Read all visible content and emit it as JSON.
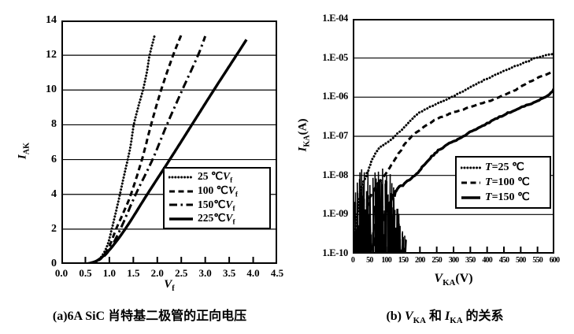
{
  "page": {
    "background": "#ffffff",
    "ink": "#000000"
  },
  "captions": {
    "a": "(a)6A SiC 肖特基二极管的正向电压",
    "b_parts": [
      {
        "t": "(b) "
      },
      {
        "sym": "V"
      },
      {
        "sub": "KA"
      },
      {
        "t": " 和 "
      },
      {
        "sym": "I"
      },
      {
        "sub": "KA"
      },
      {
        "t": " 的关系"
      }
    ]
  },
  "chart_data": [
    {
      "type": "line",
      "name": "forward-voltage",
      "title": "",
      "xlabel_parts": [
        {
          "sym": "V"
        },
        {
          "sub": "f"
        }
      ],
      "ylabel_parts": [
        {
          "sym": "I"
        },
        {
          "sub": "AK"
        }
      ],
      "xlim": [
        0,
        4.5
      ],
      "ylim": [
        0,
        14
      ],
      "xtick_values": [
        0,
        0.5,
        1.0,
        1.5,
        2.0,
        2.5,
        3.0,
        3.5,
        4.0,
        4.5
      ],
      "xtick_labels": [
        "0.0",
        "0.5",
        "1.0",
        "1.5",
        "2.0",
        "2.5",
        "3.0",
        "3.5",
        "4.0",
        "4.5"
      ],
      "ytick_values": [
        0,
        2,
        4,
        6,
        8,
        10,
        12,
        14
      ],
      "ytick_labels": [
        "0",
        "2",
        "4",
        "6",
        "8",
        "10",
        "12",
        "14"
      ],
      "grid": "horizontal",
      "legend_position": "inside-lower-right",
      "series": [
        {
          "name": "25C",
          "style": "dotted",
          "label_parts": [
            {
              "t": "25 ℃"
            },
            {
              "sym": "V"
            },
            {
              "sub": "f"
            }
          ],
          "points": [
            [
              0.62,
              0
            ],
            [
              0.8,
              0.3
            ],
            [
              0.95,
              1.0
            ],
            [
              1.05,
              2.0
            ],
            [
              1.18,
              3.5
            ],
            [
              1.3,
              5.0
            ],
            [
              1.43,
              6.6
            ],
            [
              1.51,
              8.0
            ],
            [
              1.62,
              9.2
            ],
            [
              1.7,
              10.0
            ],
            [
              1.78,
              11.0
            ],
            [
              1.84,
              12.0
            ],
            [
              1.95,
              13.2
            ]
          ]
        },
        {
          "name": "100C",
          "style": "dashed",
          "label_parts": [
            {
              "t": "100 ℃"
            },
            {
              "sym": "V"
            },
            {
              "sub": "f"
            }
          ],
          "points": [
            [
              0.6,
              0
            ],
            [
              0.8,
              0.25
            ],
            [
              0.98,
              0.9
            ],
            [
              1.14,
              2.0
            ],
            [
              1.3,
              3.0
            ],
            [
              1.45,
              4.0
            ],
            [
              1.68,
              6.0
            ],
            [
              1.87,
              8.0
            ],
            [
              2.08,
              10.0
            ],
            [
              2.33,
              12.0
            ],
            [
              2.52,
              13.3
            ]
          ]
        },
        {
          "name": "150C",
          "style": "dashdot",
          "label_parts": [
            {
              "t": "150℃"
            },
            {
              "sym": "V"
            },
            {
              "sub": "f"
            }
          ],
          "points": [
            [
              0.58,
              0
            ],
            [
              0.8,
              0.25
            ],
            [
              1.0,
              0.8
            ],
            [
              1.23,
              2.0
            ],
            [
              1.55,
              4.0
            ],
            [
              1.9,
              6.0
            ],
            [
              2.2,
              8.0
            ],
            [
              2.52,
              10.0
            ],
            [
              2.85,
              12.0
            ],
            [
              3.0,
              13.1
            ]
          ]
        },
        {
          "name": "225C",
          "style": "solid",
          "label_parts": [
            {
              "t": "225℃"
            },
            {
              "sym": "V"
            },
            {
              "sub": "f"
            }
          ],
          "points": [
            [
              0.52,
              0
            ],
            [
              0.75,
              0.2
            ],
            [
              1.0,
              0.8
            ],
            [
              1.33,
              2.0
            ],
            [
              1.79,
              4.0
            ],
            [
              2.26,
              6.0
            ],
            [
              2.72,
              8.0
            ],
            [
              3.18,
              10.0
            ],
            [
              3.65,
              12.0
            ],
            [
              3.86,
              12.9
            ]
          ]
        }
      ]
    },
    {
      "type": "line",
      "name": "leakage-current",
      "title": "",
      "yscale": "log",
      "xlabel_parts": [
        {
          "sym": "V"
        },
        {
          "sub": "KA"
        },
        {
          "t": "(V)"
        }
      ],
      "ylabel_parts": [
        {
          "sym": "I"
        },
        {
          "sub": "KA"
        },
        {
          "t": "(A)"
        }
      ],
      "xlim": [
        0,
        600
      ],
      "ylim": [
        1e-10,
        0.0001
      ],
      "xtick_values": [
        0,
        50,
        100,
        150,
        200,
        250,
        300,
        350,
        400,
        450,
        500,
        550,
        600
      ],
      "xtick_labels": [
        "0",
        "50",
        "100",
        "150",
        "200",
        "250",
        "300",
        "350",
        "400",
        "450",
        "500",
        "550",
        "600"
      ],
      "ytick_decades": [
        -4,
        -5,
        -6,
        -7,
        -8,
        -9,
        -10
      ],
      "ytick_labels": [
        "1.E-04",
        "1.E-05",
        "1.E-06",
        "1.E-07",
        "1.E-08",
        "1.E-09",
        "1.E-10"
      ],
      "grid": "horizontal",
      "legend_position": "inside-lower-right",
      "series": [
        {
          "name": "T25",
          "style": "dotted",
          "label_parts": [
            {
              "sym": "T"
            },
            {
              "t": "=25 ℃"
            }
          ],
          "points": [
            [
              3,
              1.5e-10
            ],
            [
              12,
              8e-10
            ],
            [
              25,
              4e-09
            ],
            [
              40,
              1e-08
            ],
            [
              70,
              4e-08
            ],
            [
              125,
              1e-07
            ],
            [
              200,
              4e-07
            ],
            [
              293,
              1e-06
            ],
            [
              400,
              3e-06
            ],
            [
              480,
              6e-06
            ],
            [
              546,
              1e-05
            ],
            [
              600,
              1.3e-05
            ]
          ]
        },
        {
          "name": "T100",
          "style": "dashed",
          "label_parts": [
            {
              "sym": "T"
            },
            {
              "t": "=100 ℃"
            }
          ],
          "points": [
            [
              15,
              1.2e-10
            ],
            [
              35,
              8e-10
            ],
            [
              60,
              4e-09
            ],
            [
              95,
              1e-08
            ],
            [
              140,
              4e-08
            ],
            [
              176,
              1e-07
            ],
            [
              260,
              3e-07
            ],
            [
              437,
              1e-06
            ],
            [
              520,
              2.3e-06
            ],
            [
              600,
              4.8e-06
            ]
          ]
        },
        {
          "name": "T150",
          "style": "solid",
          "label_parts": [
            {
              "sym": "T"
            },
            {
              "t": "=150 ℃"
            }
          ],
          "points": [
            [
              55,
              1.2e-10
            ],
            [
              85,
              6e-10
            ],
            [
              130,
              4e-09
            ],
            [
              185,
              1e-08
            ],
            [
              250,
              4e-08
            ],
            [
              328,
              1e-07
            ],
            [
              450,
              3.5e-07
            ],
            [
              574,
              1e-06
            ],
            [
              600,
              1.7e-06
            ]
          ]
        }
      ],
      "noise_floor": {
        "x_range_v": [
          0,
          158
        ],
        "i_range": [
          1e-10,
          1.2e-08
        ]
      }
    }
  ]
}
